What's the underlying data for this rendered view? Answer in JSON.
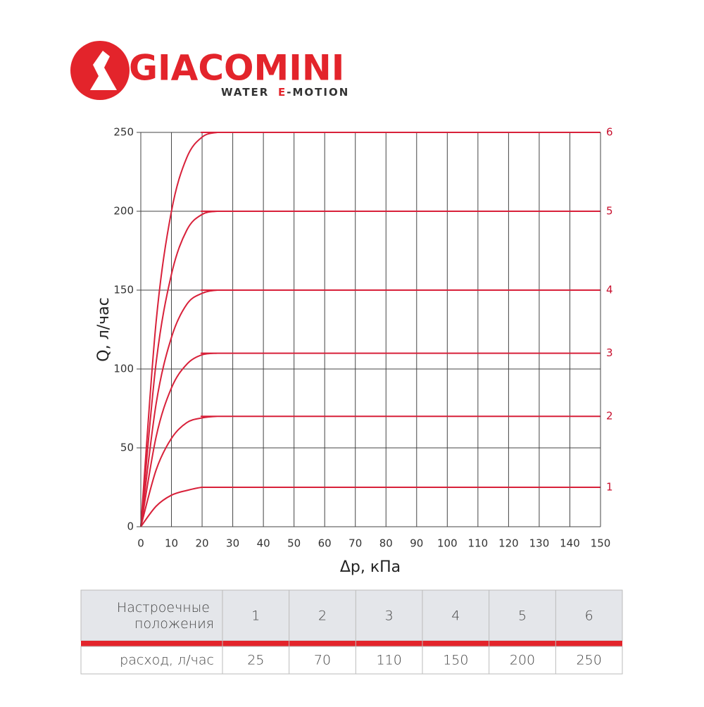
{
  "logo": {
    "name": "GIACOMINI",
    "tagline": [
      "WATER",
      "E",
      "-MOTION"
    ]
  },
  "chart_data": {
    "type": "line",
    "x_label": "Δp, кПа",
    "y_label": "Q, л/час",
    "x": [
      0,
      5,
      10,
      15,
      20,
      25,
      30,
      150
    ],
    "series": [
      {
        "name": "1",
        "color": "#d8213a",
        "values": [
          0,
          13,
          20,
          23,
          25,
          25,
          25,
          25
        ]
      },
      {
        "name": "2",
        "color": "#d8213a",
        "values": [
          0,
          36,
          56,
          66,
          69,
          70,
          70,
          70
        ]
      },
      {
        "name": "3",
        "color": "#d8213a",
        "values": [
          0,
          57,
          88,
          103,
          109,
          110,
          110,
          110
        ]
      },
      {
        "name": "4",
        "color": "#d8213a",
        "values": [
          0,
          78,
          120,
          141,
          148,
          150,
          150,
          150
        ]
      },
      {
        "name": "5",
        "color": "#d8213a",
        "values": [
          0,
          104,
          160,
          188,
          198,
          200,
          200,
          200
        ]
      },
      {
        "name": "6",
        "color": "#d8213a",
        "values": [
          0,
          130,
          200,
          234,
          247,
          250,
          250,
          250
        ]
      }
    ],
    "xlim": [
      0,
      150
    ],
    "xticks": [
      0,
      10,
      20,
      30,
      40,
      50,
      60,
      70,
      80,
      90,
      100,
      110,
      120,
      130,
      140,
      150
    ],
    "ylim": [
      0,
      250
    ],
    "yticks": [
      0,
      50,
      100,
      150,
      200,
      250
    ],
    "grid": true
  },
  "table": {
    "header": [
      "Настроечные положения",
      "1",
      "2",
      "3",
      "4",
      "5",
      "6"
    ],
    "rows": [
      [
        "расход, л/час",
        "25",
        "70",
        "110",
        "150",
        "200",
        "250"
      ]
    ]
  }
}
